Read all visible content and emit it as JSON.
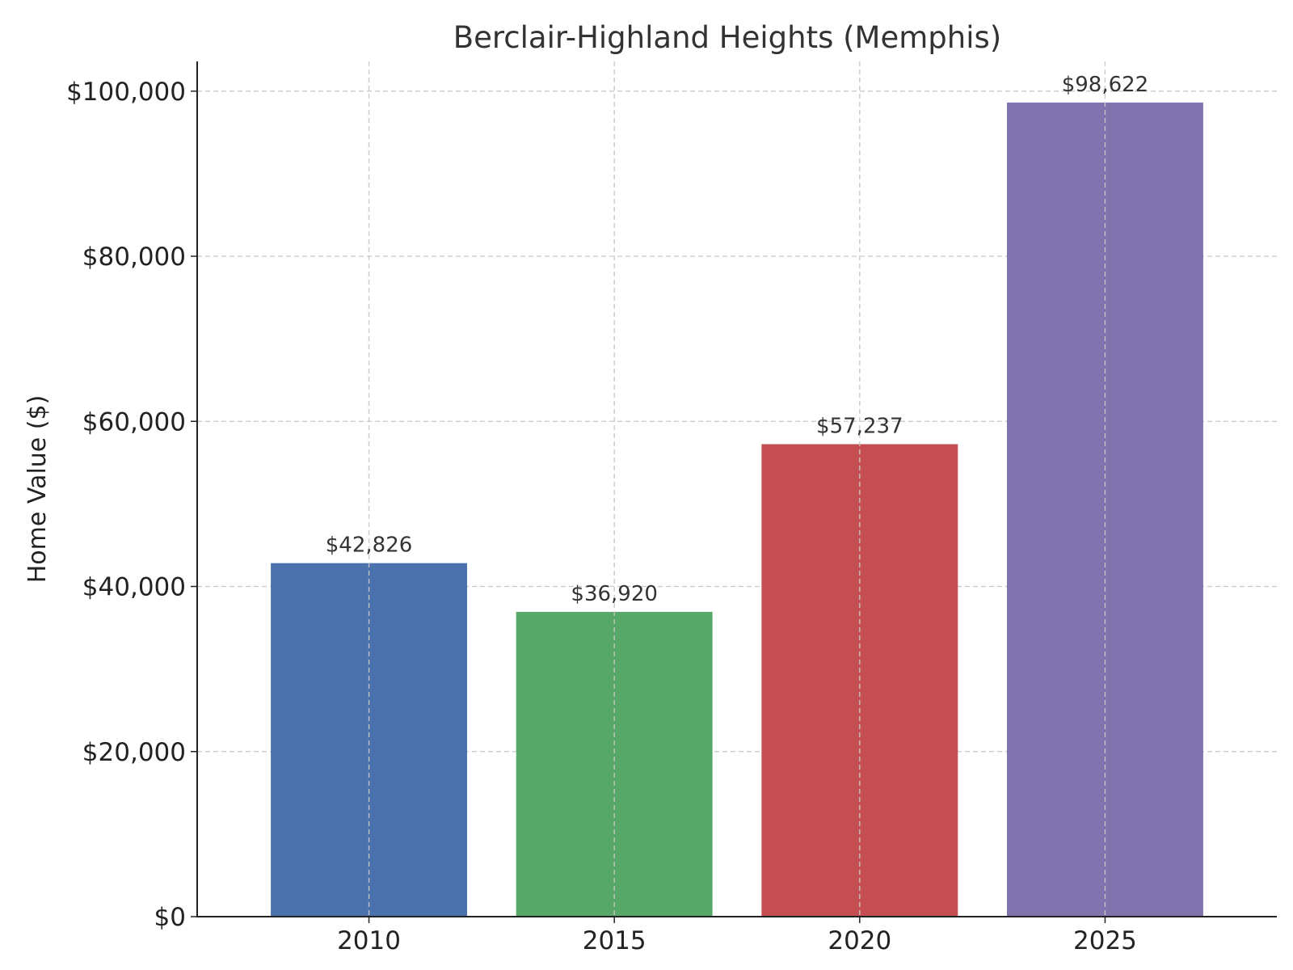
{
  "chart_data": {
    "type": "bar",
    "title": "Berclair-Highland Heights (Memphis)",
    "xlabel": "",
    "ylabel": "Home Value ($)",
    "categories": [
      "2010",
      "2015",
      "2020",
      "2025"
    ],
    "values": [
      42826,
      36920,
      57237,
      98622
    ],
    "value_labels": [
      "$42,826",
      "$36,920",
      "$57,237",
      "$98,622"
    ],
    "colors": [
      "#4c72ae",
      "#57a868",
      "#c44e52",
      "#8173ae"
    ],
    "ylim": [
      0,
      103600
    ],
    "yticks": [
      0,
      20000,
      40000,
      60000,
      80000,
      100000
    ],
    "ytick_labels": [
      "$0",
      "$20,000",
      "$40,000",
      "$60,000",
      "$80,000",
      "$100,000"
    ],
    "grid": true
  }
}
